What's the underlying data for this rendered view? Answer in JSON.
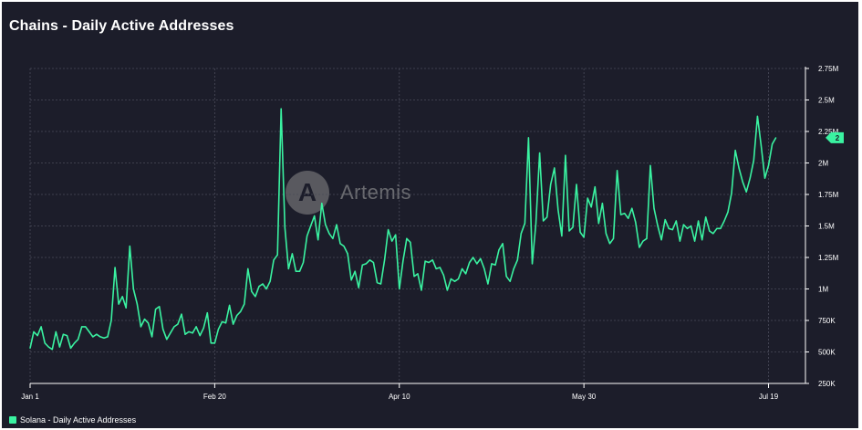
{
  "title": "Chains - Daily Active Addresses",
  "watermark": {
    "icon": "artemis-logo",
    "text": "Artemis",
    "glyph": "A"
  },
  "legend": {
    "label": "Solana - Daily Active Addresses",
    "color": "#3af2a1"
  },
  "colors": {
    "background": "#1c1d2a",
    "line": "#3af2a1",
    "grid": "#4a4b5a",
    "axis_text": "#ffffff"
  },
  "chart_data": {
    "type": "line",
    "title": "Chains - Daily Active Addresses",
    "grid": true,
    "legend_position": "bottom-left",
    "x_ticks": [
      "Jan 1",
      "Feb 20",
      "Apr 10",
      "May 30",
      "Jul 19"
    ],
    "x_range": [
      "2023-01-01",
      "2023-07-30"
    ],
    "y_axis_side": "right",
    "ylim": [
      250000,
      2750000
    ],
    "y_ticks": [
      {
        "value": 250000,
        "label": "250K"
      },
      {
        "value": 500000,
        "label": "500K"
      },
      {
        "value": 750000,
        "label": "750K"
      },
      {
        "value": 1000000,
        "label": "1M"
      },
      {
        "value": 1250000,
        "label": "1.25M"
      },
      {
        "value": 1500000,
        "label": "1.5M"
      },
      {
        "value": 1750000,
        "label": "1.75M"
      },
      {
        "value": 2000000,
        "label": "2M"
      },
      {
        "value": 2250000,
        "label": "2.25M"
      },
      {
        "value": 2500000,
        "label": "2.5M"
      },
      {
        "value": 2750000,
        "label": "2.75M"
      }
    ],
    "last_value_label": "2",
    "series": [
      {
        "name": "Solana - Daily Active Addresses",
        "x_start": "2023-01-01",
        "x_step_days": 1,
        "values": [
          530000,
          660000,
          630000,
          700000,
          570000,
          540000,
          520000,
          660000,
          540000,
          640000,
          630000,
          530000,
          570000,
          600000,
          700000,
          700000,
          660000,
          620000,
          640000,
          620000,
          610000,
          620000,
          750000,
          1170000,
          880000,
          940000,
          850000,
          1340000,
          1000000,
          880000,
          700000,
          760000,
          730000,
          620000,
          840000,
          860000,
          680000,
          600000,
          650000,
          700000,
          720000,
          800000,
          640000,
          660000,
          650000,
          700000,
          630000,
          690000,
          810000,
          570000,
          570000,
          680000,
          740000,
          730000,
          870000,
          720000,
          790000,
          820000,
          880000,
          1160000,
          980000,
          940000,
          1020000,
          1040000,
          1000000,
          1060000,
          1230000,
          1270000,
          2430000,
          1490000,
          1160000,
          1280000,
          1140000,
          1140000,
          1210000,
          1420000,
          1500000,
          1580000,
          1390000,
          1680000,
          1510000,
          1440000,
          1400000,
          1510000,
          1360000,
          1340000,
          1280000,
          1070000,
          1140000,
          1010000,
          1190000,
          1200000,
          1230000,
          1210000,
          1050000,
          1040000,
          1230000,
          1470000,
          1380000,
          1430000,
          1000000,
          1220000,
          1400000,
          1370000,
          1100000,
          1120000,
          990000,
          1220000,
          1210000,
          1230000,
          1160000,
          1170000,
          1110000,
          990000,
          1080000,
          1060000,
          1080000,
          1160000,
          1120000,
          1210000,
          1250000,
          1200000,
          1240000,
          1160000,
          1040000,
          1200000,
          1190000,
          1310000,
          1360000,
          1100000,
          1060000,
          1160000,
          1230000,
          1440000,
          1520000,
          2200000,
          1200000,
          1520000,
          2080000,
          1540000,
          1570000,
          1830000,
          1960000,
          1630000,
          1420000,
          2060000,
          1460000,
          1490000,
          1830000,
          1450000,
          1410000,
          1720000,
          1650000,
          1810000,
          1520000,
          1680000,
          1440000,
          1360000,
          1400000,
          1940000,
          1590000,
          1600000,
          1560000,
          1640000,
          1530000,
          1330000,
          1380000,
          1400000,
          1980000,
          1640000,
          1500000,
          1390000,
          1550000,
          1480000,
          1470000,
          1540000,
          1380000,
          1510000,
          1480000,
          1500000,
          1380000,
          1540000,
          1390000,
          1570000,
          1460000,
          1440000,
          1480000,
          1480000,
          1540000,
          1610000,
          1760000,
          2100000,
          1960000,
          1850000,
          1770000,
          1880000,
          2020000,
          2370000,
          2140000,
          1880000,
          1980000,
          2150000,
          2200000
        ]
      }
    ]
  }
}
